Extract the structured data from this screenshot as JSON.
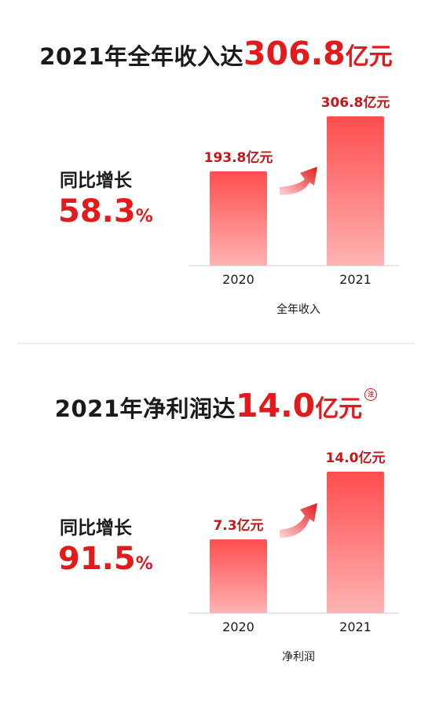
{
  "revenue_panel": {
    "headline_prefix": "2021年全年收入达",
    "headline_value": "306.8",
    "headline_unit": "亿元",
    "growth_label": "同比增长",
    "growth_value": "58.3",
    "growth_unit": "%"
  },
  "profit_panel": {
    "headline_prefix": "2021年净利润达",
    "headline_value": "14.0",
    "headline_unit": "亿元",
    "headline_note": "注",
    "growth_label": "同比增长",
    "growth_value": "91.5",
    "growth_unit": "%"
  },
  "colors": {
    "accent": "#e3191b",
    "bar_top": "#ff4d4f",
    "bar_bottom": "#ffb3b3",
    "axis": "#dddddd"
  },
  "chart_data": [
    {
      "type": "bar",
      "categories": [
        "2020",
        "2021"
      ],
      "values": [
        193.8,
        306.8
      ],
      "data_labels": [
        "193.8亿元",
        "306.8亿元"
      ],
      "xlabel": "全年收入",
      "ylabel": "",
      "title": "",
      "ylim": [
        0,
        306.8
      ],
      "grid": false,
      "legend": "none"
    },
    {
      "type": "bar",
      "categories": [
        "2020",
        "2021"
      ],
      "values": [
        7.3,
        14.0
      ],
      "data_labels": [
        "7.3亿元",
        "14.0亿元"
      ],
      "xlabel": "净利润",
      "ylabel": "",
      "title": "",
      "ylim": [
        0,
        14.0
      ],
      "grid": false,
      "legend": "none"
    }
  ]
}
